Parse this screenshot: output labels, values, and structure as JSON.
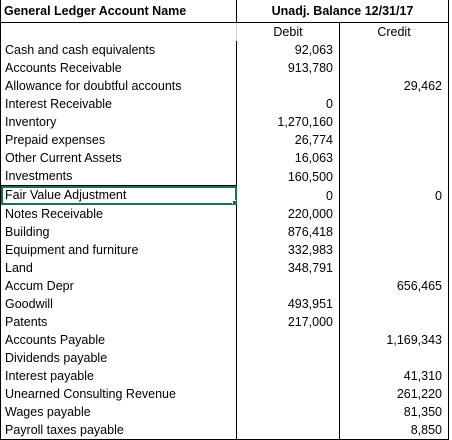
{
  "header": {
    "account_name": "General Ledger Account Name",
    "balance_title": "Unadj. Balance 12/31/17",
    "debit": "Debit",
    "credit": "Credit"
  },
  "rows": [
    {
      "name": "Cash and cash equivalents",
      "debit": "92,063",
      "credit": ""
    },
    {
      "name": "Accounts Receivable",
      "debit": "913,780",
      "credit": ""
    },
    {
      "name": "Allowance for doubtful accounts",
      "debit": "",
      "credit": "29,462"
    },
    {
      "name": "Interest Receivable",
      "debit": "0",
      "credit": ""
    },
    {
      "name": "Inventory",
      "debit": "1,270,160",
      "credit": ""
    },
    {
      "name": "Prepaid expenses",
      "debit": "26,774",
      "credit": ""
    },
    {
      "name": "Other Current Assets",
      "debit": "16,063",
      "credit": ""
    },
    {
      "name": "Investments",
      "debit": "160,500",
      "credit": ""
    },
    {
      "name": "Fair Value Adjustment",
      "debit": "0",
      "credit": "0"
    },
    {
      "name": "Notes Receivable",
      "debit": "220,000",
      "credit": ""
    },
    {
      "name": "Building",
      "debit": "876,418",
      "credit": ""
    },
    {
      "name": "Equipment and furniture",
      "debit": "332,983",
      "credit": ""
    },
    {
      "name": "Land",
      "debit": "348,791",
      "credit": ""
    },
    {
      "name": "Accum Depr",
      "debit": "",
      "credit": "656,465"
    },
    {
      "name": "Goodwill",
      "debit": "493,951",
      "credit": ""
    },
    {
      "name": "Patents",
      "debit": "217,000",
      "credit": ""
    },
    {
      "name": "Accounts Payable",
      "debit": "",
      "credit": "1,169,343"
    },
    {
      "name": "Dividends payable",
      "debit": "",
      "credit": ""
    },
    {
      "name": "Interest payable",
      "debit": "",
      "credit": "41,310"
    },
    {
      "name": "Unearned Consulting Revenue",
      "debit": "",
      "credit": "261,220"
    },
    {
      "name": "Wages payable",
      "debit": "",
      "credit": "81,350"
    },
    {
      "name": "Payroll taxes payable",
      "debit": "",
      "credit": "8,850"
    }
  ],
  "colors": {
    "selection": "#1e7145",
    "border": "#000000"
  }
}
